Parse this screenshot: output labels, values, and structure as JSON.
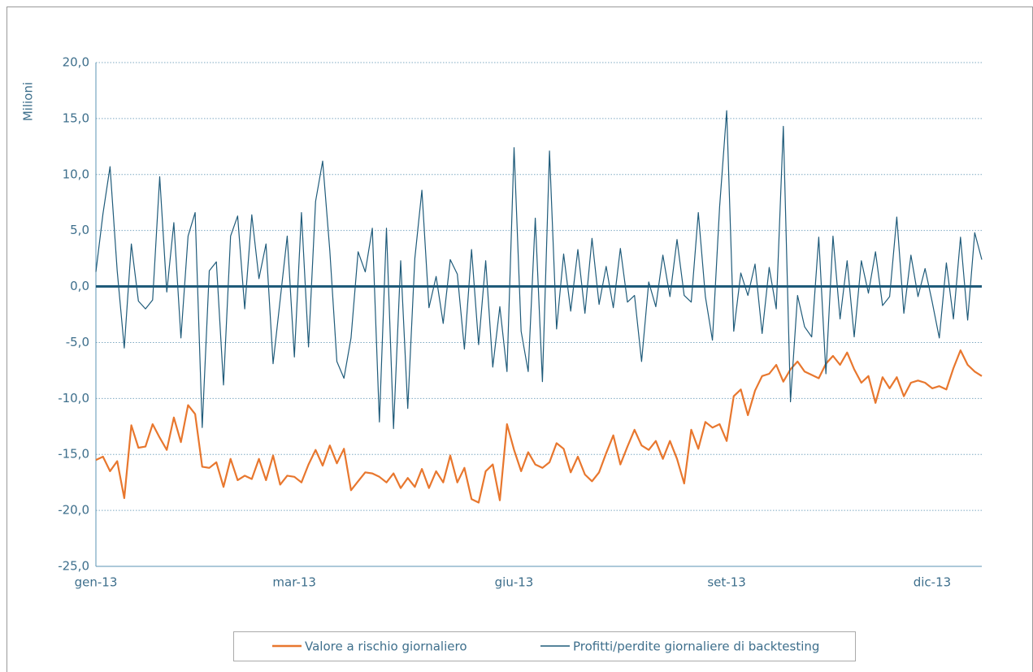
{
  "chart_data": {
    "type": "line",
    "y_label": "Milioni",
    "categories": [
      "gen-13",
      null,
      null,
      null,
      null,
      null,
      null,
      null,
      null,
      null,
      null,
      null,
      null,
      null,
      null,
      null,
      null,
      null,
      null,
      null,
      null,
      null,
      null,
      null,
      null,
      null,
      null,
      null,
      "mar-13",
      null,
      null,
      null,
      null,
      null,
      null,
      null,
      null,
      null,
      null,
      null,
      null,
      null,
      null,
      null,
      null,
      null,
      null,
      null,
      null,
      null,
      null,
      null,
      null,
      null,
      null,
      null,
      null,
      null,
      null,
      "giu-13",
      null,
      null,
      null,
      null,
      null,
      null,
      null,
      null,
      null,
      null,
      null,
      null,
      null,
      null,
      null,
      null,
      null,
      null,
      null,
      null,
      null,
      null,
      null,
      null,
      null,
      null,
      null,
      null,
      null,
      "set-13",
      null,
      null,
      null,
      null,
      null,
      null,
      null,
      null,
      null,
      null,
      null,
      null,
      null,
      null,
      null,
      null,
      null,
      null,
      null,
      null,
      null,
      null,
      null,
      null,
      null,
      null,
      null,
      null,
      "dic-13",
      null,
      null,
      null,
      null,
      null,
      null,
      null
    ],
    "series": [
      {
        "name": "Valore a rischio giornaliero",
        "color": "#e8772e",
        "values": [
          -15.5,
          -15.2,
          -16.5,
          -15.6,
          -18.9,
          -12.4,
          -14.4,
          -14.3,
          -12.3,
          -13.5,
          -14.6,
          -11.7,
          -13.9,
          -10.6,
          -11.4,
          -16.1,
          -16.2,
          -15.7,
          -17.9,
          -15.4,
          -17.3,
          -16.9,
          -17.2,
          -15.4,
          -17.3,
          -15.1,
          -17.7,
          -16.9,
          -17.0,
          -17.5,
          -15.9,
          -14.6,
          -16.0,
          -14.2,
          -15.8,
          -14.5,
          -18.2,
          -17.4,
          -16.6,
          -16.7,
          -17.0,
          -17.5,
          -16.7,
          -18.0,
          -17.1,
          -17.9,
          -16.3,
          -18.0,
          -16.5,
          -17.5,
          -15.1,
          -17.5,
          -16.2,
          -19.0,
          -19.3,
          -16.5,
          -15.9,
          -19.1,
          -12.3,
          -14.6,
          -16.5,
          -14.8,
          -15.9,
          -16.2,
          -15.7,
          -14.0,
          -14.5,
          -16.6,
          -15.2,
          -16.8,
          -17.4,
          -16.6,
          -14.9,
          -13.3,
          -15.9,
          -14.3,
          -12.8,
          -14.2,
          -14.6,
          -13.8,
          -15.4,
          -13.8,
          -15.4,
          -17.6,
          -12.8,
          -14.5,
          -12.1,
          -12.6,
          -12.3,
          -13.8,
          -9.8,
          -9.2,
          -11.5,
          -9.3,
          -8.0,
          -7.8,
          -7.0,
          -8.5,
          -7.4,
          -6.7,
          -7.6,
          -7.9,
          -8.2,
          -6.9,
          -6.2,
          -7.0,
          -5.9,
          -7.4,
          -8.6,
          -8.0,
          -10.4,
          -8.1,
          -9.1,
          -8.1,
          -9.8,
          -8.6,
          -8.4,
          -8.6,
          -9.1,
          -8.9,
          -9.2,
          -7.3,
          -5.7,
          -7.0,
          -7.6,
          -8.0
        ]
      },
      {
        "name": "Profitti/perdite giornaliere di backtesting",
        "color": "#1f5b7a",
        "values": [
          1.3,
          6.5,
          10.7,
          1.4,
          -5.5,
          3.8,
          -1.3,
          -2.0,
          -1.2,
          9.8,
          -0.5,
          5.7,
          -4.6,
          4.5,
          6.6,
          -12.6,
          1.4,
          2.2,
          -8.8,
          4.5,
          6.3,
          -2.0,
          6.4,
          0.7,
          3.8,
          -6.9,
          -1.2,
          4.5,
          -6.3,
          6.6,
          -5.4,
          7.6,
          11.2,
          3.2,
          -6.7,
          -8.2,
          -4.6,
          3.1,
          1.3,
          5.2,
          -12.1,
          5.2,
          -12.7,
          2.3,
          -10.9,
          2.5,
          8.6,
          -1.9,
          0.9,
          -3.3,
          2.4,
          1.1,
          -5.6,
          3.3,
          -5.2,
          2.3,
          -7.2,
          -1.8,
          -7.6,
          12.4,
          -4.0,
          -7.6,
          6.1,
          -8.5,
          12.1,
          -3.8,
          2.9,
          -2.2,
          3.3,
          -2.4,
          4.3,
          -1.6,
          1.8,
          -1.9,
          3.4,
          -1.4,
          -0.8,
          -6.7,
          0.4,
          -1.8,
          2.8,
          -0.9,
          4.2,
          -0.8,
          -1.4,
          6.6,
          -0.9,
          -4.8,
          7.1,
          15.7,
          -4.0,
          1.2,
          -0.8,
          2.0,
          -4.2,
          1.7,
          -2.0,
          14.3,
          -10.3,
          -0.8,
          -3.6,
          -4.5,
          4.4,
          -7.8,
          4.5,
          -2.9,
          2.3,
          -4.5,
          2.3,
          -0.6,
          3.1,
          -1.7,
          -0.9,
          6.2,
          -2.4,
          2.8,
          -0.9,
          1.6,
          -1.4,
          -4.6,
          2.1,
          -2.9,
          4.4,
          -3.0,
          4.8,
          2.4
        ]
      }
    ],
    "ylim": [
      -25,
      20
    ],
    "yticks": [
      {
        "value": -25,
        "label": "-25,0"
      },
      {
        "value": -20,
        "label": "-20,0"
      },
      {
        "value": -15,
        "label": "-15,0"
      },
      {
        "value": -10,
        "label": "-10,0"
      },
      {
        "value": -5,
        "label": "-5,0"
      },
      {
        "value": 0,
        "label": "0,0"
      },
      {
        "value": 5,
        "label": "5,0"
      },
      {
        "value": 10,
        "label": "10,0"
      },
      {
        "value": 15,
        "label": "15,0"
      },
      {
        "value": 20,
        "label": "20,0"
      }
    ],
    "grid": true,
    "legend": "bottom"
  }
}
